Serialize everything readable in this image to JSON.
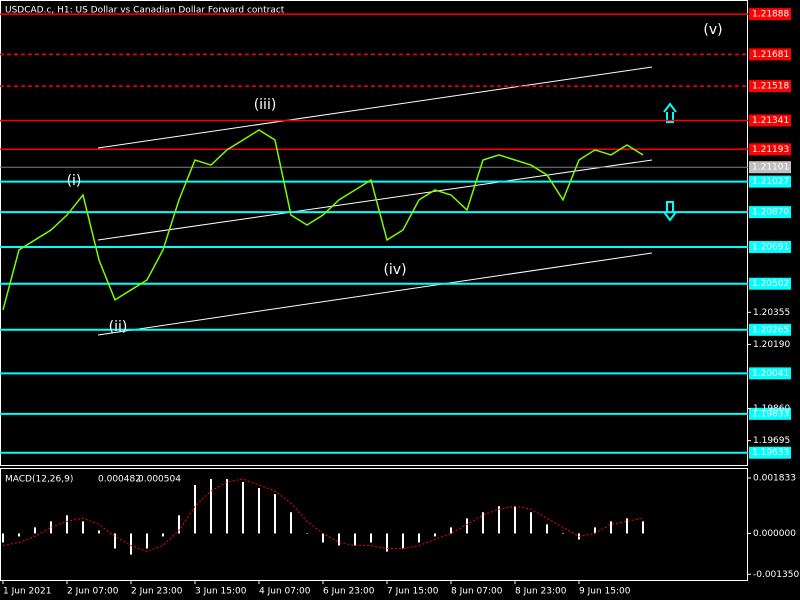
{
  "chart_data": [
    {
      "type": "line",
      "title": "USDCAD.c, H1: US Dollar vs Canadian Dollar Forward contract",
      "categories": [
        "1 Jun 2021",
        null,
        null,
        null,
        "2 Jun 07:00",
        null,
        null,
        null,
        "2 Jun 23:00",
        null,
        null,
        null,
        "3 Jun 15:00",
        null,
        null,
        null,
        "4 Jun 07:00",
        null,
        null,
        null,
        "6 Jun 23:00",
        null,
        null,
        null,
        "7 Jun 15:00",
        null,
        null,
        null,
        "8 Jun 07:00",
        null,
        null,
        null,
        "8 Jun 23:00",
        null,
        null,
        null,
        "9 Jun 15:00",
        null,
        null,
        null,
        null
      ],
      "values": [
        1.20367,
        1.20676,
        1.20727,
        1.20778,
        1.20855,
        1.20958,
        1.20624,
        1.20419,
        1.2047,
        1.20521,
        1.20676,
        1.20933,
        1.21138,
        1.21112,
        1.2119,
        1.21241,
        1.21292,
        1.21241,
        1.20855,
        1.20804,
        1.20855,
        1.20933,
        1.20984,
        1.21035,
        1.20727,
        1.20778,
        1.20933,
        1.20984,
        1.20958,
        1.20881,
        1.21138,
        1.21164,
        1.21138,
        1.21112,
        1.21061,
        1.20933,
        1.21138,
        1.2119,
        1.21164,
        1.21215,
        1.21164
      ],
      "color": "#7cfc00",
      "ylim": [
        1.1957,
        1.2194
      ],
      "yticks": [
        1.20355,
        {
          "value": 1.2019,
          "label": "1.20190"
        },
        {
          "value": 1.1986,
          "label": "1.19860"
        },
        1.19695
      ],
      "last": 1.21101,
      "levels": [
        {
          "value": 1.21888,
          "color": "#ff0000",
          "style": "solid"
        },
        {
          "value": 1.21681,
          "color": "#ff0000",
          "style": "dashed"
        },
        {
          "value": 1.21518,
          "color": "#ff0000",
          "style": "dashed"
        },
        {
          "value": 1.21341,
          "color": "#ff0000",
          "style": "solid"
        },
        {
          "value": 1.21193,
          "color": "#ff0000",
          "style": "solid"
        },
        {
          "value": 1.21027,
          "color": "#00ffff",
          "style": "solid"
        },
        {
          "value": 1.2087,
          "label": "1.20870",
          "color": "#00ffff",
          "style": "solid"
        },
        {
          "value": 1.20691,
          "color": "#00ffff",
          "style": "solid"
        },
        {
          "value": 1.20502,
          "color": "#00ffff",
          "style": "solid"
        },
        {
          "value": 1.20265,
          "color": "#00ffff",
          "style": "solid"
        },
        {
          "value": 1.20041,
          "color": "#00ffff",
          "style": "solid"
        },
        {
          "value": 1.19833,
          "color": "#00ffff",
          "style": "solid"
        },
        {
          "value": 1.19633,
          "color": "#00ffff",
          "style": "solid"
        }
      ],
      "annotations": [
        "(i)",
        "(ii)",
        "(iii)",
        "(iv)",
        "(v)"
      ]
    },
    {
      "type": "macd",
      "label": "MACD(12,26,9)",
      "macd_value": 0.000482,
      "signal_value": 0.000504,
      "values": [
        -0.0003,
        -0.0001,
        0.0002,
        0.0004,
        0.0006,
        0.0004,
        0.0001,
        -0.0005,
        -0.0007,
        -0.0005,
        -0.0001,
        0.0006,
        0.0016,
        0.0018,
        0.0018,
        0.0017,
        0.0015,
        0.0013,
        0.0007,
        0,
        -0.0003,
        -0.0004,
        -0.0004,
        -0.0003,
        -0.0006,
        -0.0005,
        -0.0003,
        -0.0001,
        0.0002,
        0.0005,
        0.0007,
        0.0009,
        0.0009,
        0.0007,
        0.0003,
        0,
        -0.0002,
        0.0002,
        0.0004,
        0.0005,
        0.0004
      ],
      "signal": [
        -0.0004,
        -0.0003,
        -0.0001,
        0.0002,
        0.0004,
        0.0005,
        0.0003,
        -0.0001,
        -0.0004,
        -0.0006,
        -0.0004,
        0.0001,
        0.0009,
        0.0014,
        0.0017,
        0.0018,
        0.0016,
        0.0014,
        0.001,
        0.0004,
        0,
        -0.0003,
        -0.0004,
        -0.0004,
        -0.0005,
        -0.0005,
        -0.0004,
        -0.0002,
        0,
        0.0003,
        0.0006,
        0.0008,
        0.0009,
        0.0008,
        0.0005,
        0.0002,
        -0.0001,
        0,
        0.0003,
        0.0004,
        0.0005
      ],
      "color": "#ffffff",
      "signal_color": "#ff0000",
      "ylim": [
        -0.00154,
        0.00213
      ],
      "yticks": [
        0.001833,
        {
          "value": 0,
          "label": "0.000000"
        },
        {
          "value": -0.00135,
          "label": "-0.001350"
        }
      ]
    }
  ]
}
